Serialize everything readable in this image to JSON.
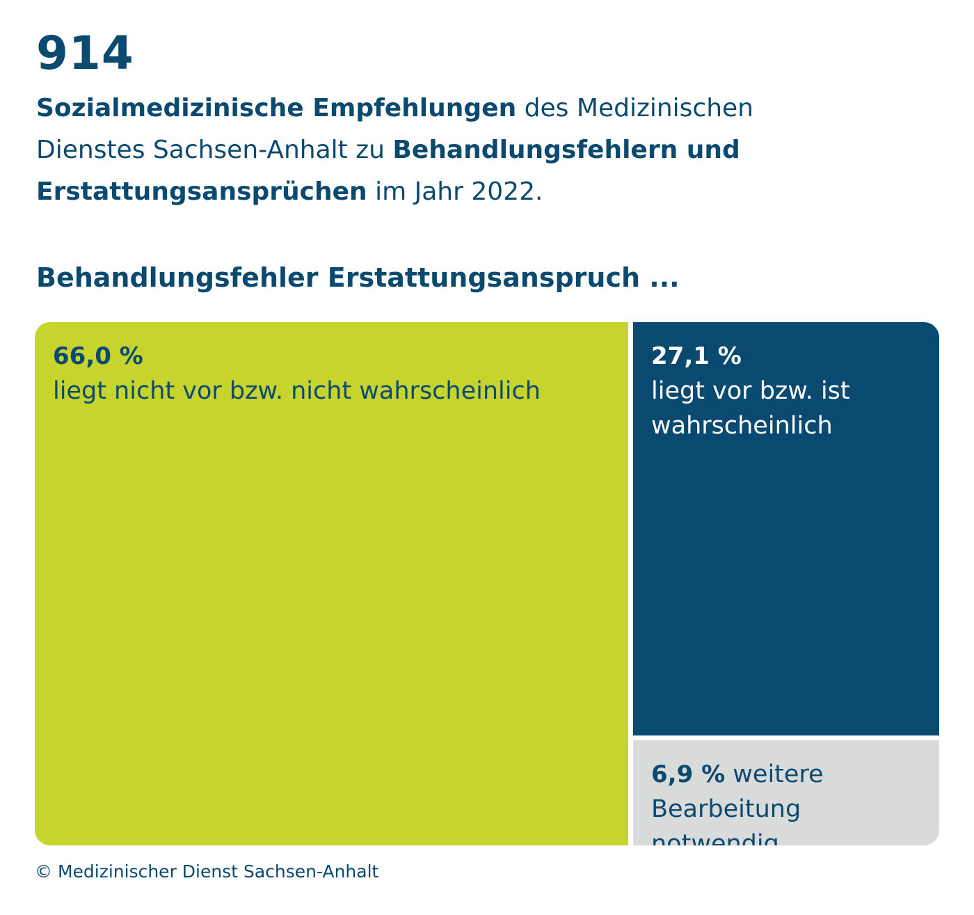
{
  "header": {
    "count": "914",
    "parts": [
      {
        "text": "Sozialmedizinische Empfehlungen",
        "bold": true
      },
      {
        "text": " des Medizinischen Dienstes Sachsen-Anhalt zu ",
        "bold": false
      },
      {
        "text": "Behandlungsfehlern und Erstattungsansprüchen",
        "bold": true
      },
      {
        "text": " im Jahr 2022.",
        "bold": false
      }
    ]
  },
  "chart_title": "Behandlungsfehler Erstattungsanspruch ...",
  "chart_data": {
    "type": "treemap",
    "title": "Behandlungsfehler Erstattungsanspruch ...",
    "unit": "%",
    "items": [
      {
        "label": "liegt nicht vor bzw. nicht wahrscheinlich",
        "value": 66.0,
        "display": "66,0 %",
        "color": "#c8d42e",
        "text_color": "#0a4a70"
      },
      {
        "label": "liegt vor bzw. ist wahrscheinlich",
        "value": 27.1,
        "display": "27,1 %",
        "color": "#0a4a70",
        "text_color": "#ffffff"
      },
      {
        "label": "weitere Bearbeitung notwendig",
        "value": 6.9,
        "display": "6,9 %",
        "color": "#d9dbda",
        "text_color": "#0a4a70"
      }
    ]
  },
  "footer": {
    "copyright": "© Medizinischer Dienst Sachsen-Anhalt"
  },
  "colors": {
    "primary": "#0a4a70",
    "accent_green": "#c8d42e",
    "neutral_gray": "#d9dbda"
  }
}
